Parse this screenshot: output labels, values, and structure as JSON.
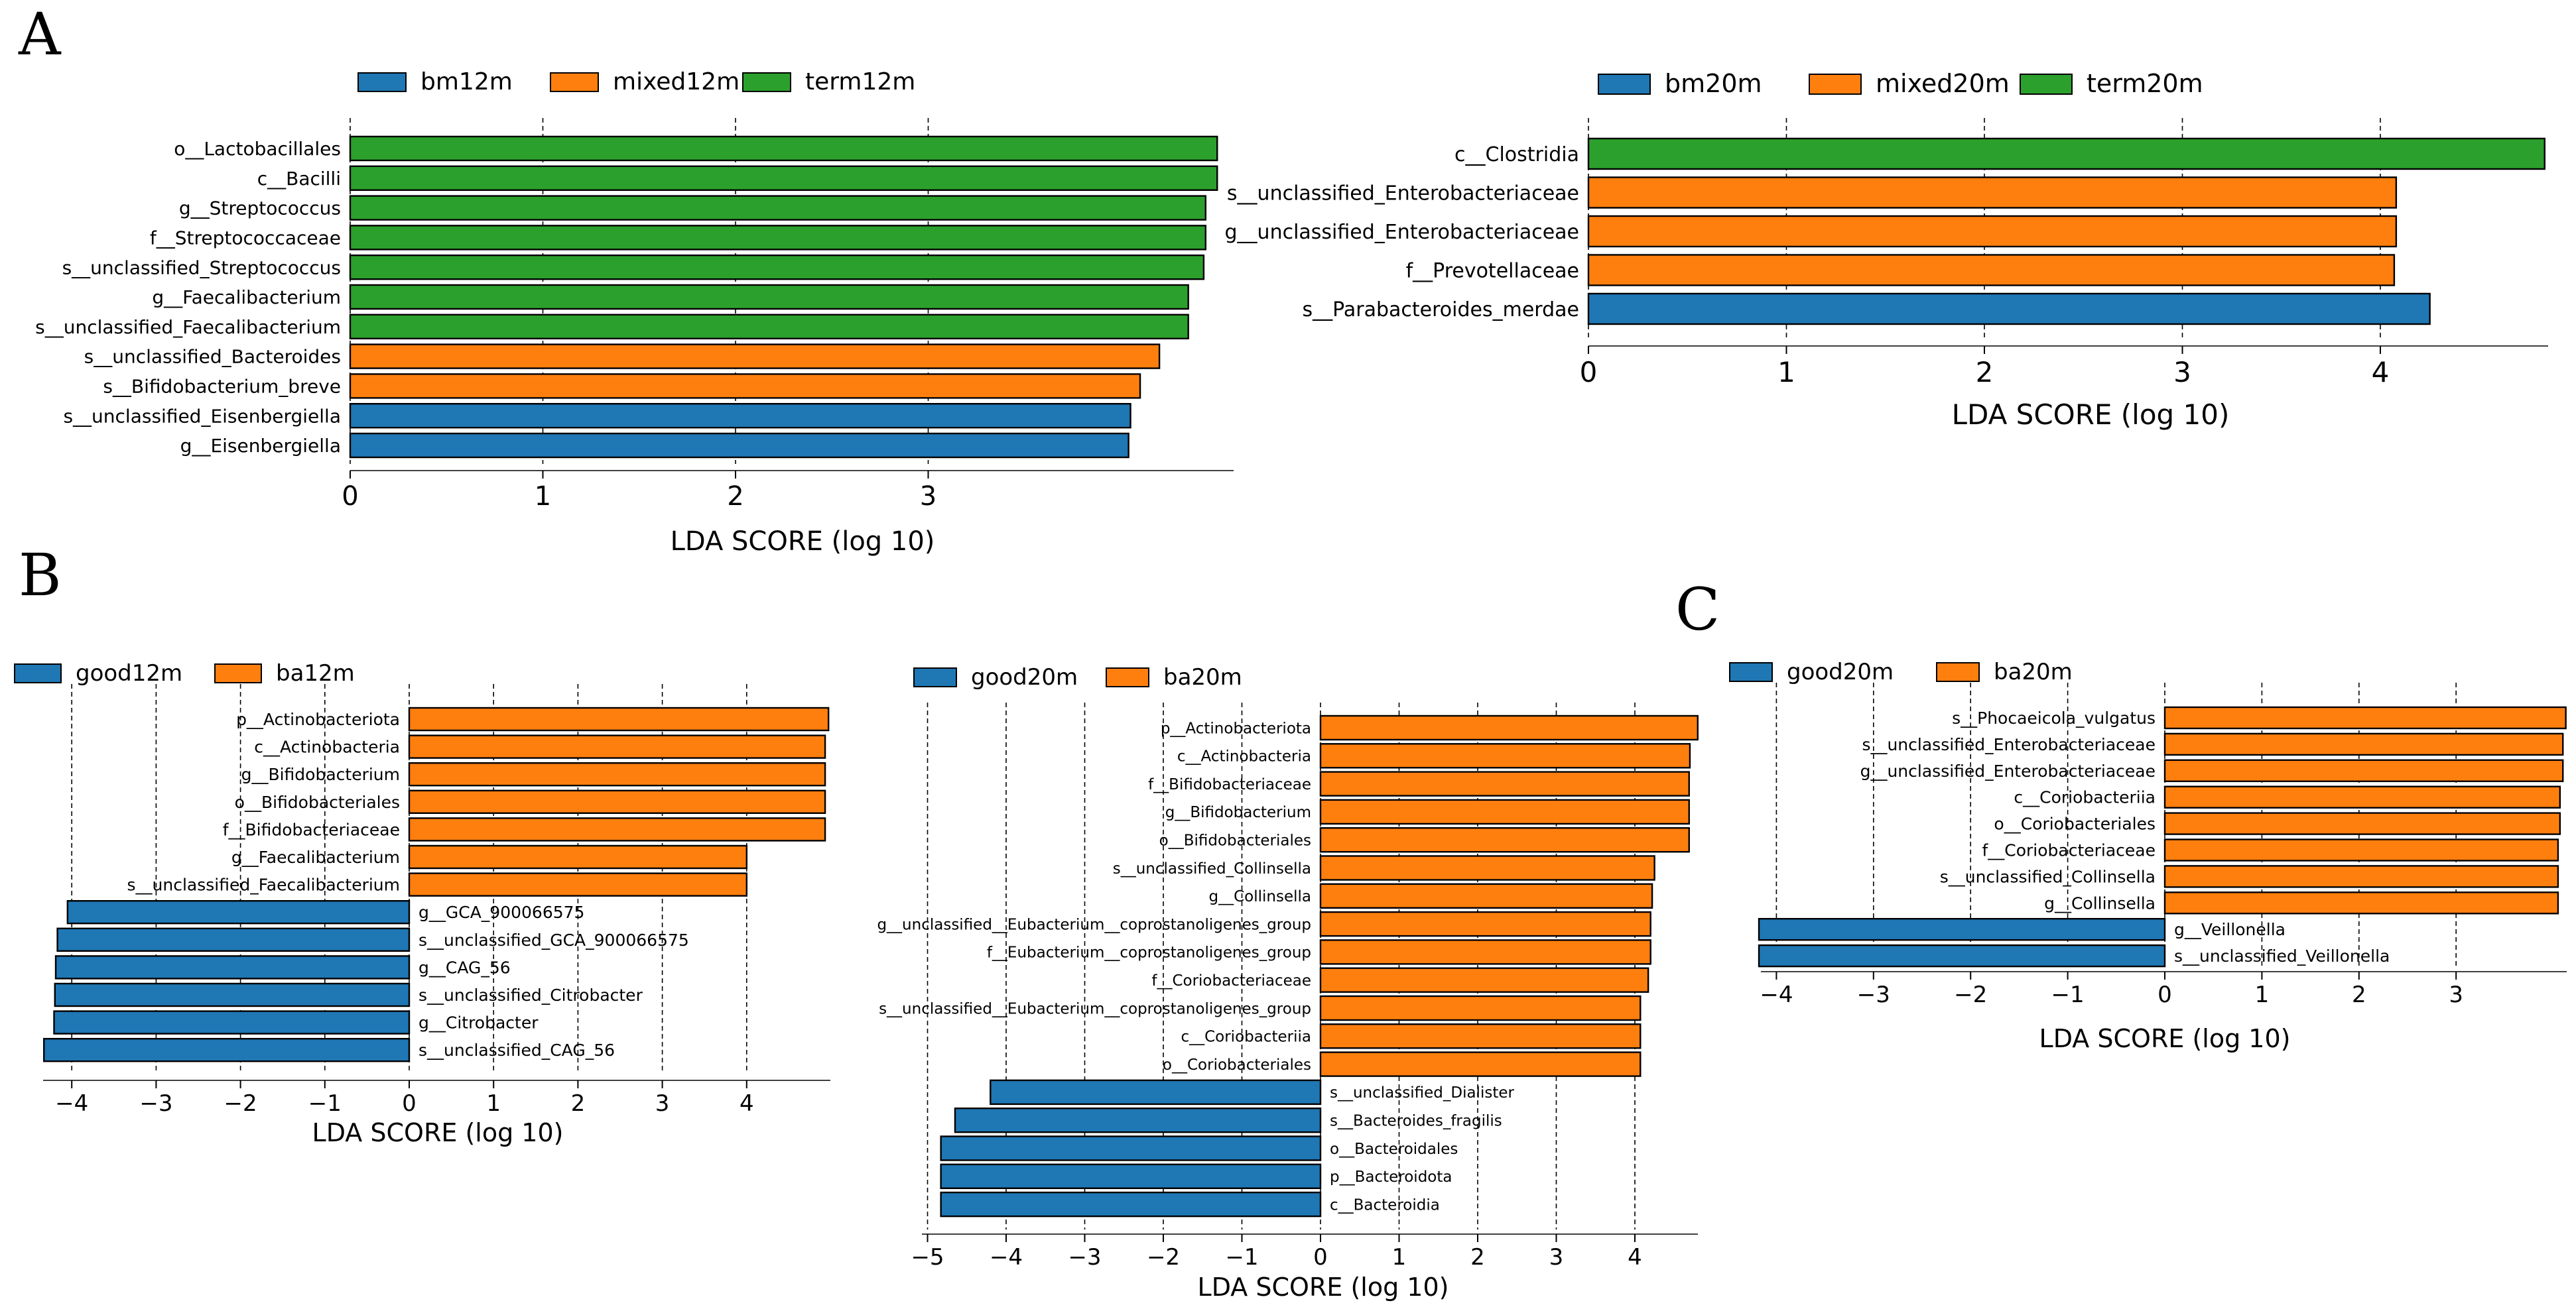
{
  "panel_labels": {
    "a": "A",
    "b": "B",
    "c": "C"
  },
  "colors": {
    "blue": "#1f77b4",
    "orange": "#ff7f0e",
    "green": "#2ca02c",
    "bar_edge": "#000000",
    "grid": "#000000",
    "text": "#000000"
  },
  "chart_data": [
    {
      "id": "a1",
      "type": "bar",
      "orientation": "horizontal",
      "panel": "A",
      "xlabel": "LDA SCORE (log 10)",
      "xticks": [
        0,
        1,
        2,
        3
      ],
      "xlim": [
        0,
        4.5
      ],
      "legend": [
        {
          "name": "bm12m",
          "color": "blue"
        },
        {
          "name": "mixed12m",
          "color": "orange"
        },
        {
          "name": "term12m",
          "color": "green"
        }
      ],
      "categories": [
        "o__Lactobacillales",
        "c__Bacilli",
        "g__Streptococcus",
        "f__Streptococcaceae",
        "s__unclassified_Streptococcus",
        "g__Faecalibacterium",
        "s__unclassified_Faecalibacterium",
        "s__unclassified_Bacteroides",
        "s__Bifidobacterium_breve",
        "s__unclassified_Eisenbergiella",
        "g__Eisenbergiella"
      ],
      "values": [
        4.5,
        4.5,
        4.44,
        4.44,
        4.43,
        4.35,
        4.35,
        4.2,
        4.1,
        4.05,
        4.04
      ],
      "groups": [
        "green",
        "green",
        "green",
        "green",
        "green",
        "green",
        "green",
        "orange",
        "orange",
        "blue",
        "blue"
      ]
    },
    {
      "id": "a2",
      "type": "bar",
      "orientation": "horizontal",
      "panel": "A",
      "xlabel": "LDA SCORE (log 10)",
      "xticks": [
        0,
        1,
        2,
        3,
        4
      ],
      "xlim": [
        0,
        4.85
      ],
      "legend": [
        {
          "name": "bm20m",
          "color": "blue"
        },
        {
          "name": "mixed20m",
          "color": "orange"
        },
        {
          "name": "term20m",
          "color": "green"
        }
      ],
      "categories": [
        "c__Clostridia",
        "s__unclassified_Enterobacteriaceae",
        "g__unclassified_Enterobacteriaceae",
        "f__Prevotellaceae",
        "s__Parabacteroides_merdae"
      ],
      "values": [
        4.83,
        4.08,
        4.08,
        4.07,
        4.25
      ],
      "groups": [
        "green",
        "orange",
        "orange",
        "orange",
        "blue"
      ]
    },
    {
      "id": "b1",
      "type": "bar",
      "orientation": "horizontal",
      "panel": "B",
      "xlabel": "LDA SCORE (log 10)",
      "xticks": [
        -4,
        -3,
        -2,
        -1,
        0,
        1,
        2,
        3,
        4
      ],
      "xlim": [
        -4.35,
        5.0
      ],
      "legend": [
        {
          "name": "good12m",
          "color": "blue"
        },
        {
          "name": "ba12m",
          "color": "orange"
        }
      ],
      "categories": [
        "p__Actinobacteriota",
        "c__Actinobacteria",
        "g__Bifidobacterium",
        "o__Bifidobacteriales",
        "f__Bifidobacteriaceae",
        "g__Faecalibacterium",
        "s__unclassified_Faecalibacterium",
        "g__GCA_900066575",
        "s__unclassified_GCA_900066575",
        "g__CAG_56",
        "s__unclassified_Citrobacter",
        "g__Citrobacter",
        "s__unclassified_CAG_56"
      ],
      "values": [
        4.97,
        4.93,
        4.93,
        4.93,
        4.93,
        4.0,
        4.0,
        -4.05,
        -4.17,
        -4.19,
        -4.2,
        -4.21,
        -4.33
      ],
      "groups": [
        "orange",
        "orange",
        "orange",
        "orange",
        "orange",
        "orange",
        "orange",
        "blue",
        "blue",
        "blue",
        "blue",
        "blue",
        "blue"
      ]
    },
    {
      "id": "b2",
      "type": "bar",
      "orientation": "horizontal",
      "panel": "B",
      "xlabel": "LDA SCORE (log 10)",
      "xticks": [
        -5,
        -4,
        -3,
        -2,
        -1,
        0,
        1,
        2,
        3,
        4
      ],
      "xlim": [
        -5.2,
        4.85
      ],
      "legend": [
        {
          "name": "good20m",
          "color": "blue"
        },
        {
          "name": "ba20m",
          "color": "orange"
        }
      ],
      "categories": [
        "p__Actinobacteriota",
        "c__Actinobacteria",
        "f__Bifidobacteriaceae",
        "g__Bifidobacterium",
        "o__Bifidobacteriales",
        "s__unclassified_Collinsella",
        "g__Collinsella",
        "g__unclassified__Eubacterium__coprostanoligenes_group",
        "f__Eubacterium__coprostanoligenes_group",
        "f__Coriobacteriaceae",
        "s__unclassified__Eubacterium__coprostanoligenes_group",
        "c__Coriobacteriia",
        "o__Coriobacteriales",
        "s__unclassified_Dialister",
        "s__Bacteroides_fragilis",
        "o__Bacteroidales",
        "p__Bacteroidota",
        "c__Bacteroidia"
      ],
      "values": [
        4.8,
        4.7,
        4.69,
        4.69,
        4.69,
        4.25,
        4.22,
        4.2,
        4.2,
        4.17,
        4.07,
        4.07,
        4.07,
        -4.2,
        -4.65,
        -4.83,
        -4.83,
        -4.83
      ],
      "groups": [
        "orange",
        "orange",
        "orange",
        "orange",
        "orange",
        "orange",
        "orange",
        "orange",
        "orange",
        "orange",
        "orange",
        "orange",
        "orange",
        "blue",
        "blue",
        "blue",
        "blue",
        "blue"
      ]
    },
    {
      "id": "c1",
      "type": "bar",
      "orientation": "horizontal",
      "panel": "C",
      "xlabel": "LDA SCORE (log 10)",
      "xticks": [
        -4,
        -3,
        -2,
        -1,
        0,
        1,
        2,
        3
      ],
      "xlim": [
        -4.2,
        4.15
      ],
      "legend": [
        {
          "name": "good20m",
          "color": "blue"
        },
        {
          "name": "ba20m",
          "color": "orange"
        }
      ],
      "categories": [
        "s__Phocaeicola_vulgatus",
        "s__unclassified_Enterobacteriaceae",
        "g__unclassified_Enterobacteriaceae",
        "c__Coriobacteriia",
        "o__Coriobacteriales",
        "f__Coriobacteriaceae",
        "s__unclassified_Collinsella",
        "g__Collinsella",
        "g__Veillonella",
        "s__unclassified_Veillonella"
      ],
      "values": [
        4.13,
        4.1,
        4.1,
        4.07,
        4.07,
        4.05,
        4.05,
        4.05,
        -4.18,
        -4.18
      ],
      "groups": [
        "orange",
        "orange",
        "orange",
        "orange",
        "orange",
        "orange",
        "orange",
        "orange",
        "blue",
        "blue"
      ]
    }
  ]
}
